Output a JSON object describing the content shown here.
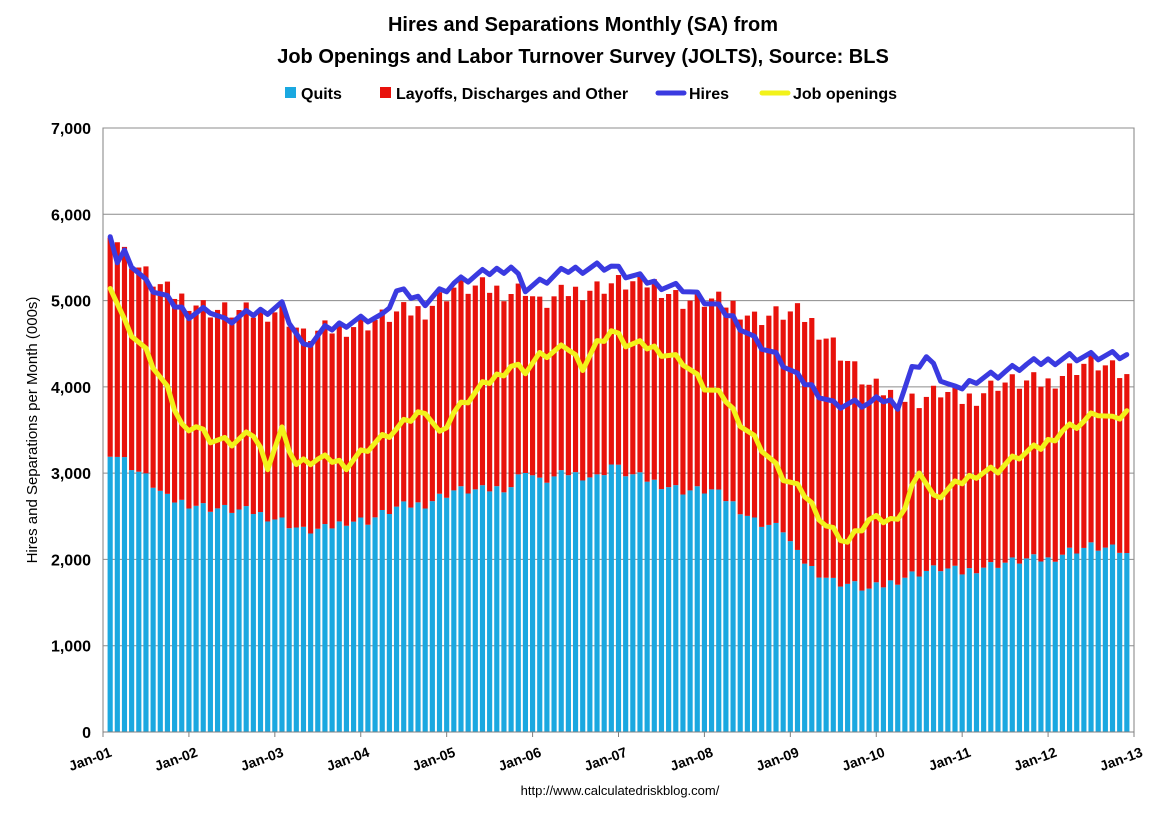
{
  "chart_data": {
    "type": "bar",
    "title": "Hires and Separations Monthly (SA) from",
    "subtitle": "Job Openings and Labor Turnover Survey (JOLTS), Source: BLS",
    "ylabel": "Hires and Separations per Month (000s)",
    "xlabel": "",
    "ylim": [
      0,
      7000
    ],
    "y_ticks": [
      "0",
      "1,000",
      "2,000",
      "3,000",
      "4,000",
      "5,000",
      "6,000",
      "7,000"
    ],
    "x_ticks": [
      "Jan-01",
      "Jan-02",
      "Jan-03",
      "Jan-04",
      "Jan-05",
      "Jan-06",
      "Jan-07",
      "Jan-08",
      "Jan-09",
      "Jan-10",
      "Jan-11",
      "Jan-12",
      "Jan-13"
    ],
    "grid": "horizontal",
    "legend_position": "top",
    "stacked": true,
    "start_month": "Jan-01",
    "source_note": "http://www.calculatedriskblog.com/",
    "series": [
      {
        "name": "Quits",
        "kind": "bar",
        "color": "#1aa8e0",
        "anchors": [
          [
            0,
            3250
          ],
          [
            2,
            3150
          ],
          [
            5,
            2950
          ],
          [
            8,
            2700
          ],
          [
            11,
            2650
          ],
          [
            14,
            2600
          ],
          [
            20,
            2550
          ],
          [
            24,
            2450
          ],
          [
            27,
            2330
          ],
          [
            30,
            2350
          ],
          [
            33,
            2450
          ],
          [
            36,
            2450
          ],
          [
            40,
            2600
          ],
          [
            44,
            2650
          ],
          [
            48,
            2800
          ],
          [
            52,
            2800
          ],
          [
            56,
            2850
          ],
          [
            58,
            3050
          ],
          [
            60,
            2900
          ],
          [
            64,
            3000
          ],
          [
            68,
            2950
          ],
          [
            70,
            3100
          ],
          [
            72,
            3000
          ],
          [
            76,
            2900
          ],
          [
            80,
            2800
          ],
          [
            84,
            2800
          ],
          [
            87,
            2650
          ],
          [
            90,
            2450
          ],
          [
            94,
            2350
          ],
          [
            96,
            2050
          ],
          [
            98,
            1900
          ],
          [
            101,
            1750
          ],
          [
            104,
            1700
          ],
          [
            106,
            1650
          ],
          [
            108,
            1700
          ],
          [
            111,
            1800
          ],
          [
            113,
            1850
          ],
          [
            116,
            1900
          ],
          [
            119,
            1850
          ],
          [
            121,
            1900
          ],
          [
            124,
            1950
          ],
          [
            128,
            2000
          ],
          [
            131,
            2000
          ],
          [
            134,
            2100
          ],
          [
            137,
            2150
          ],
          [
            141,
            2100
          ],
          [
            142,
            2050
          ]
        ]
      },
      {
        "name": "Layoffs, Discharges and Other",
        "kind": "bar",
        "color": "#e8120c",
        "anchors": [
          [
            0,
            2600
          ],
          [
            2,
            2400
          ],
          [
            5,
            2350
          ],
          [
            8,
            2400
          ],
          [
            11,
            2350
          ],
          [
            14,
            2300
          ],
          [
            20,
            2300
          ],
          [
            24,
            2450
          ],
          [
            27,
            2250
          ],
          [
            30,
            2300
          ],
          [
            33,
            2250
          ],
          [
            36,
            2300
          ],
          [
            40,
            2250
          ],
          [
            44,
            2250
          ],
          [
            48,
            2350
          ],
          [
            52,
            2350
          ],
          [
            56,
            2250
          ],
          [
            58,
            2100
          ],
          [
            60,
            2050
          ],
          [
            64,
            2100
          ],
          [
            68,
            2200
          ],
          [
            70,
            2100
          ],
          [
            72,
            2200
          ],
          [
            76,
            2300
          ],
          [
            80,
            2200
          ],
          [
            84,
            2200
          ],
          [
            87,
            2300
          ],
          [
            90,
            2350
          ],
          [
            94,
            2500
          ],
          [
            96,
            2800
          ],
          [
            98,
            2850
          ],
          [
            101,
            2750
          ],
          [
            104,
            2500
          ],
          [
            106,
            2350
          ],
          [
            108,
            2250
          ],
          [
            111,
            2050
          ],
          [
            113,
            2000
          ],
          [
            116,
            2050
          ],
          [
            119,
            2000
          ],
          [
            121,
            2000
          ],
          [
            124,
            2100
          ],
          [
            128,
            2050
          ],
          [
            131,
            2050
          ],
          [
            134,
            2100
          ],
          [
            137,
            2150
          ],
          [
            141,
            2050
          ],
          [
            142,
            2050
          ]
        ]
      },
      {
        "name": "Hires",
        "kind": "line",
        "color": "#3a3ae0",
        "anchors": [
          [
            0,
            5800
          ],
          [
            1,
            5450
          ],
          [
            2,
            5550
          ],
          [
            5,
            5200
          ],
          [
            8,
            5000
          ],
          [
            11,
            4850
          ],
          [
            14,
            4900
          ],
          [
            16,
            4750
          ],
          [
            20,
            4850
          ],
          [
            24,
            4950
          ],
          [
            27,
            4450
          ],
          [
            30,
            4650
          ],
          [
            33,
            4750
          ],
          [
            36,
            4800
          ],
          [
            38,
            4800
          ],
          [
            40,
            5100
          ],
          [
            44,
            5000
          ],
          [
            48,
            5200
          ],
          [
            52,
            5300
          ],
          [
            56,
            5400
          ],
          [
            58,
            5150
          ],
          [
            60,
            5200
          ],
          [
            64,
            5350
          ],
          [
            68,
            5400
          ],
          [
            70,
            5400
          ],
          [
            72,
            5300
          ],
          [
            76,
            5200
          ],
          [
            80,
            5150
          ],
          [
            84,
            4950
          ],
          [
            87,
            4800
          ],
          [
            90,
            4550
          ],
          [
            93,
            4350
          ],
          [
            96,
            4100
          ],
          [
            98,
            4000
          ],
          [
            101,
            3800
          ],
          [
            104,
            3800
          ],
          [
            106,
            3800
          ],
          [
            108,
            3850
          ],
          [
            110,
            3800
          ],
          [
            112,
            4200
          ],
          [
            114,
            4350
          ],
          [
            116,
            4100
          ],
          [
            118,
            3950
          ],
          [
            121,
            4100
          ],
          [
            124,
            4150
          ],
          [
            128,
            4250
          ],
          [
            131,
            4300
          ],
          [
            134,
            4350
          ],
          [
            137,
            4350
          ],
          [
            139,
            4350
          ],
          [
            142,
            4350
          ]
        ]
      },
      {
        "name": "Job openings",
        "kind": "line",
        "color": "#f2f21a",
        "anchors": [
          [
            0,
            5200
          ],
          [
            2,
            4750
          ],
          [
            5,
            4400
          ],
          [
            8,
            3950
          ],
          [
            10,
            3550
          ],
          [
            12,
            3550
          ],
          [
            14,
            3400
          ],
          [
            17,
            3350
          ],
          [
            20,
            3450
          ],
          [
            22,
            3100
          ],
          [
            24,
            3500
          ],
          [
            26,
            3100
          ],
          [
            29,
            3150
          ],
          [
            31,
            3150
          ],
          [
            33,
            3100
          ],
          [
            36,
            3300
          ],
          [
            40,
            3500
          ],
          [
            44,
            3750
          ],
          [
            46,
            3450
          ],
          [
            48,
            3700
          ],
          [
            52,
            4000
          ],
          [
            56,
            4250
          ],
          [
            58,
            4200
          ],
          [
            60,
            4350
          ],
          [
            64,
            4450
          ],
          [
            66,
            4250
          ],
          [
            68,
            4500
          ],
          [
            70,
            4650
          ],
          [
            72,
            4500
          ],
          [
            76,
            4450
          ],
          [
            80,
            4300
          ],
          [
            83,
            4000
          ],
          [
            86,
            3850
          ],
          [
            88,
            3600
          ],
          [
            91,
            3300
          ],
          [
            94,
            2950
          ],
          [
            97,
            2750
          ],
          [
            100,
            2400
          ],
          [
            103,
            2200
          ],
          [
            106,
            2450
          ],
          [
            109,
            2450
          ],
          [
            111,
            2600
          ],
          [
            113,
            3050
          ],
          [
            115,
            2700
          ],
          [
            118,
            2850
          ],
          [
            121,
            3000
          ],
          [
            124,
            3050
          ],
          [
            127,
            3200
          ],
          [
            130,
            3300
          ],
          [
            133,
            3500
          ],
          [
            136,
            3600
          ],
          [
            138,
            3700
          ],
          [
            140,
            3600
          ],
          [
            142,
            3700
          ]
        ]
      }
    ]
  }
}
